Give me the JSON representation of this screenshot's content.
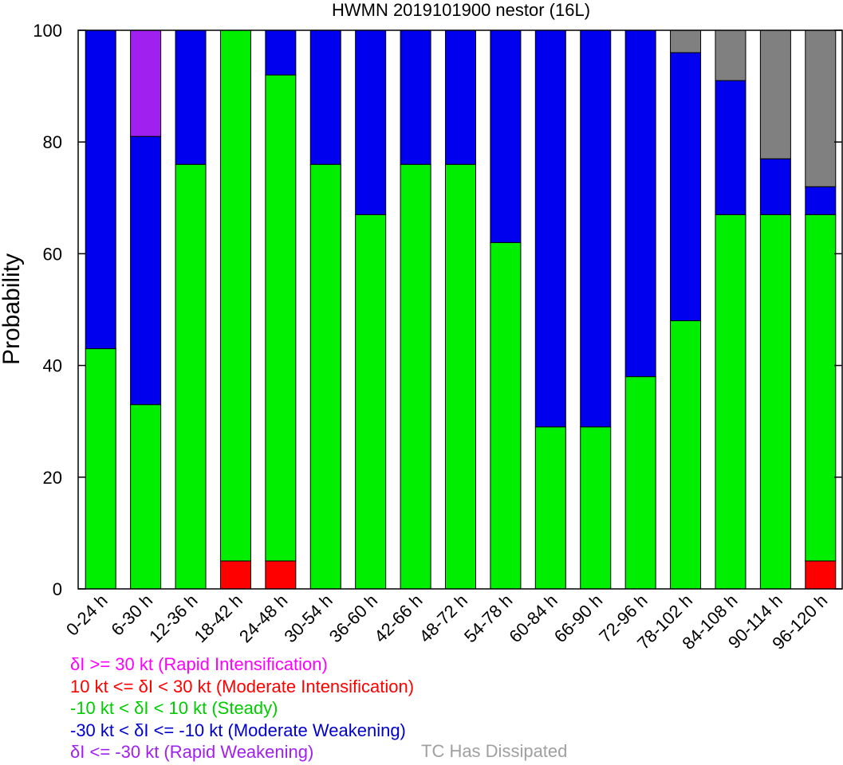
{
  "chart_data": {
    "type": "bar",
    "stacked": true,
    "title": "HWMN 2019101900 nestor (16L)",
    "xlabel": "",
    "ylabel": "Probability",
    "ylim": [
      0,
      100
    ],
    "yticks": [
      0,
      20,
      40,
      60,
      80,
      100
    ],
    "categories": [
      "0-24 h",
      "6-30 h",
      "12-36 h",
      "18-42 h",
      "24-48 h",
      "30-54 h",
      "36-60 h",
      "42-66 h",
      "48-72 h",
      "54-78 h",
      "60-84 h",
      "66-90 h",
      "72-96 h",
      "78-102 h",
      "84-108 h",
      "90-114 h",
      "96-120 h"
    ],
    "series": [
      {
        "key": "ri",
        "color": "#ff00ff",
        "values": [
          0,
          0,
          0,
          0,
          0,
          0,
          0,
          0,
          0,
          0,
          0,
          0,
          0,
          0,
          0,
          0,
          0
        ]
      },
      {
        "key": "mi",
        "color": "#ff0000",
        "values": [
          0,
          0,
          0,
          5,
          5,
          0,
          0,
          0,
          0,
          0,
          0,
          0,
          0,
          0,
          0,
          0,
          5
        ]
      },
      {
        "key": "steady",
        "color": "#00ee00",
        "values": [
          43,
          33,
          76,
          95,
          87,
          76,
          67,
          76,
          76,
          62,
          29,
          29,
          38,
          48,
          67,
          67,
          62
        ]
      },
      {
        "key": "mw",
        "color": "#0000ee",
        "values": [
          57,
          48,
          24,
          0,
          8,
          24,
          33,
          24,
          24,
          38,
          71,
          71,
          62,
          48,
          24,
          10,
          5
        ]
      },
      {
        "key": "rw",
        "color": "#a020f0",
        "values": [
          0,
          19,
          0,
          0,
          0,
          0,
          0,
          0,
          0,
          0,
          0,
          0,
          0,
          0,
          0,
          0,
          0
        ]
      },
      {
        "key": "dissipated",
        "color": "#808080",
        "values": [
          0,
          0,
          0,
          0,
          0,
          0,
          0,
          0,
          0,
          0,
          0,
          0,
          0,
          4,
          9,
          23,
          28
        ]
      }
    ],
    "legend": {
      "placement": "bottom-left",
      "entries": [
        {
          "text": "δI >= 30 kt (Rapid Intensification)",
          "color": "#ff00ff"
        },
        {
          "text": "10 kt <= δI < 30 kt (Moderate Intensification)",
          "color": "#ff0000"
        },
        {
          "text": "-10 kt < δI < 10 kt (Steady)",
          "color": "#00cc00"
        },
        {
          "text": "-30 kt < δI <= -10 kt (Moderate Weakening)",
          "color": "#0000cc"
        },
        {
          "text": "δI <= -30 kt (Rapid Weakening)",
          "color": "#a020f0"
        }
      ],
      "dissipated": {
        "text": "TC Has Dissipated",
        "color": "#a0a0a0"
      }
    }
  }
}
